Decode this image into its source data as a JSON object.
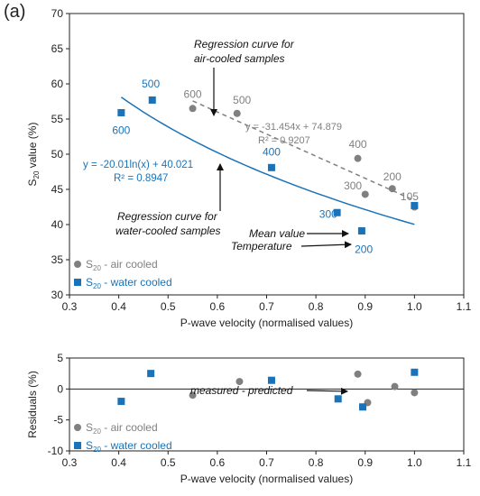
{
  "panel_label": "(a)",
  "colors": {
    "air": "#808080",
    "water": "#1a73b8",
    "axis": "#222222",
    "arrow": "#111111"
  },
  "chart_data": [
    {
      "type": "scatter",
      "xlabel": "P-wave velocity (normalised values)",
      "ylabel": "S20 value (%)",
      "xlim": [
        0.3,
        1.1
      ],
      "ylim": [
        30,
        70
      ],
      "xticks": [
        "0.3",
        "0.4",
        "0.5",
        "0.6",
        "0.7",
        "0.8",
        "0.9",
        "1.0",
        "1.1"
      ],
      "yticks": [
        "30",
        "35",
        "40",
        "45",
        "50",
        "55",
        "60",
        "65",
        "70"
      ],
      "series": [
        {
          "name": "S20 - air cooled",
          "marker": "circle",
          "points": [
            {
              "x": 0.55,
              "y": 56.5
            },
            {
              "x": 0.64,
              "y": 55.8
            },
            {
              "x": 0.885,
              "y": 49.4
            },
            {
              "x": 0.9,
              "y": 44.3
            },
            {
              "x": 0.955,
              "y": 45.1
            },
            {
              "x": 1.0,
              "y": 42.5
            }
          ],
          "labels": [
            {
              "text": "600",
              "x": 0.55,
              "y": 58.5
            },
            {
              "text": "500",
              "x": 0.65,
              "y": 57.7
            },
            {
              "text": "400",
              "x": 0.885,
              "y": 51.4
            },
            {
              "text": "300",
              "x": 0.875,
              "y": 45.5
            },
            {
              "text": "200",
              "x": 0.955,
              "y": 46.8
            },
            {
              "text": "105",
              "x": 0.99,
              "y": 44.0
            }
          ]
        },
        {
          "name": "S20 - water cooled",
          "marker": "square",
          "points": [
            {
              "x": 0.405,
              "y": 55.9
            },
            {
              "x": 0.468,
              "y": 57.7
            },
            {
              "x": 0.71,
              "y": 48.1
            },
            {
              "x": 0.843,
              "y": 41.7
            },
            {
              "x": 0.893,
              "y": 39.1
            },
            {
              "x": 1.0,
              "y": 42.7
            }
          ],
          "labels": [
            {
              "text": "600",
              "x": 0.405,
              "y": 53.4
            },
            {
              "text": "500",
              "x": 0.465,
              "y": 60.0
            },
            {
              "text": "400",
              "x": 0.71,
              "y": 50.3
            },
            {
              "text": "300",
              "x": 0.825,
              "y": 41.5
            },
            {
              "text": "200",
              "x": 0.897,
              "y": 36.5
            }
          ]
        }
      ],
      "fits": [
        {
          "series": "S20 - air cooled",
          "kind": "linear",
          "a": -31.454,
          "b": 74.879,
          "x_range": [
            0.55,
            1.0
          ],
          "style": "dashed"
        },
        {
          "series": "S20 - water cooled",
          "kind": "log",
          "a": -20.01,
          "b": 40.021,
          "x_range": [
            0.405,
            1.0
          ],
          "style": "solid"
        }
      ],
      "annotations": {
        "air_eq": "y = -31.454x + 74.879",
        "air_r2": "R² = 0.9207",
        "water_eq": "y = -20.01ln(x) + 40.021",
        "water_r2": "R² = 0.8947",
        "reg_air_line1": "Regression curve for",
        "reg_air_line2": "air-cooled samples",
        "reg_water_line1": "Regression curve for",
        "reg_water_line2": "water-cooled samples",
        "mean_value": "Mean value",
        "temperature": "Temperature"
      },
      "legend": {
        "position": "bottom-left",
        "air": "S20 - air cooled",
        "water": "S20 - water cooled"
      }
    },
    {
      "type": "scatter",
      "xlabel": "P-wave velocity (normalised values)",
      "ylabel": "Residuals (%)",
      "xlim": [
        0.3,
        1.1
      ],
      "ylim": [
        -10,
        5
      ],
      "xticks": [
        "0.3",
        "0.4",
        "0.5",
        "0.6",
        "0.7",
        "0.8",
        "0.9",
        "1.0",
        "1.1"
      ],
      "yticks": [
        "-10",
        "-5",
        "0",
        "5"
      ],
      "series": [
        {
          "name": "S20 - air cooled",
          "marker": "circle",
          "points": [
            {
              "x": 0.55,
              "y": -1.0
            },
            {
              "x": 0.645,
              "y": 1.2
            },
            {
              "x": 0.885,
              "y": 2.4
            },
            {
              "x": 0.905,
              "y": -2.2
            },
            {
              "x": 0.96,
              "y": 0.4
            },
            {
              "x": 1.0,
              "y": -0.6
            }
          ]
        },
        {
          "name": "S20 - water cooled",
          "marker": "square",
          "points": [
            {
              "x": 0.405,
              "y": -2.0
            },
            {
              "x": 0.465,
              "y": 2.5
            },
            {
              "x": 0.71,
              "y": 1.4
            },
            {
              "x": 0.845,
              "y": -1.6
            },
            {
              "x": 0.895,
              "y": -2.9
            },
            {
              "x": 1.0,
              "y": 2.7
            }
          ]
        }
      ],
      "annotations": {
        "measured_predicted": "measured - predicted"
      },
      "legend": {
        "position": "bottom-left",
        "air": "S20 - air cooled",
        "water": "S20 - water cooled"
      }
    }
  ]
}
